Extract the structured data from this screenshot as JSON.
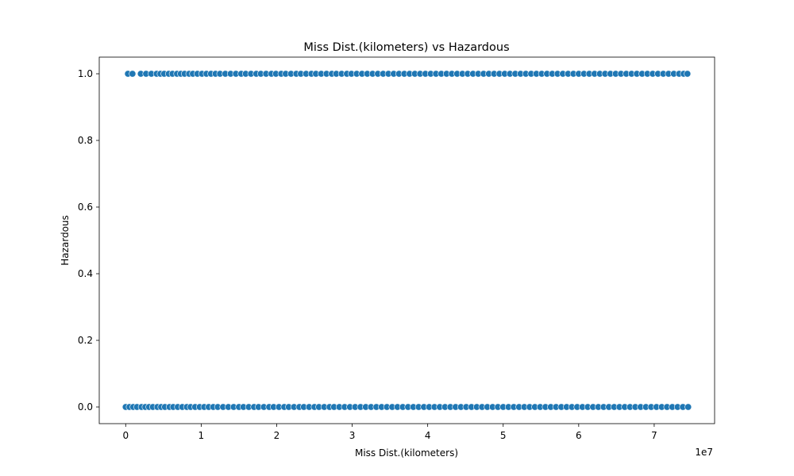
{
  "chart_data": {
    "type": "scatter",
    "title": "Miss Dist.(kilometers) vs Hazardous",
    "xlabel": "Miss Dist.(kilometers)",
    "ylabel": "Hazardous",
    "x_offset_label": "1e7",
    "x_scale": 10000000,
    "xlim": [
      -3500000,
      78000000
    ],
    "ylim": [
      -0.05,
      1.05
    ],
    "x_ticks": [
      {
        "value": 0,
        "label": "0"
      },
      {
        "value": 10000000,
        "label": "1"
      },
      {
        "value": 20000000,
        "label": "2"
      },
      {
        "value": 30000000,
        "label": "3"
      },
      {
        "value": 40000000,
        "label": "4"
      },
      {
        "value": 50000000,
        "label": "5"
      },
      {
        "value": 60000000,
        "label": "6"
      },
      {
        "value": 70000000,
        "label": "7"
      }
    ],
    "y_ticks": [
      {
        "value": 0.0,
        "label": "0.0"
      },
      {
        "value": 0.2,
        "label": "0.2"
      },
      {
        "value": 0.4,
        "label": "0.4"
      },
      {
        "value": 0.6,
        "label": "0.6"
      },
      {
        "value": 0.8,
        "label": "0.8"
      },
      {
        "value": 1.0,
        "label": "1.0"
      }
    ],
    "grid": false,
    "marker_color": "#1f77b4",
    "marker_edge_color": "#ffffff",
    "series": [
      {
        "y": 1,
        "x": [
          300000,
          900000,
          2000000,
          2700000,
          3400000,
          4100000,
          4600000,
          5100000,
          5700000,
          6200000,
          6800000,
          7300000,
          7800000,
          8400000,
          8900000,
          9500000,
          10100000,
          10700000,
          11300000,
          11900000,
          12500000,
          13200000,
          13900000,
          14600000,
          15300000,
          15900000,
          16600000,
          17300000,
          17900000,
          18600000,
          19300000,
          19900000,
          20600000,
          21200000,
          21900000,
          22600000,
          23200000,
          23900000,
          24600000,
          25200000,
          25900000,
          26600000,
          27300000,
          27900000,
          28600000,
          29300000,
          29900000,
          30600000,
          31300000,
          32000000,
          32700000,
          33400000,
          34100000,
          34800000,
          35500000,
          36200000,
          36900000,
          37600000,
          38300000,
          39000000,
          39700000,
          40400000,
          41100000,
          41800000,
          42500000,
          43200000,
          43900000,
          44600000,
          45300000,
          46000000,
          46700000,
          47400000,
          48100000,
          48800000,
          49500000,
          50200000,
          50900000,
          51600000,
          52300000,
          53000000,
          53700000,
          54400000,
          55100000,
          55800000,
          56500000,
          57200000,
          57900000,
          58600000,
          59300000,
          60000000,
          60700000,
          61400000,
          62100000,
          62800000,
          63500000,
          64200000,
          64900000,
          65600000,
          66300000,
          67000000,
          67700000,
          68400000,
          69100000,
          69800000,
          70500000,
          71200000,
          71900000,
          72600000,
          73300000,
          73900000,
          74400000
        ]
      },
      {
        "y": 0,
        "x": [
          0,
          500000,
          1000000,
          1500000,
          2100000,
          2600000,
          3100000,
          3600000,
          4200000,
          4700000,
          5200000,
          5800000,
          6300000,
          6900000,
          7500000,
          8100000,
          8600000,
          9200000,
          9800000,
          10400000,
          11000000,
          11600000,
          12200000,
          12900000,
          13600000,
          14300000,
          15000000,
          15600000,
          16300000,
          17000000,
          17600000,
          18300000,
          19000000,
          19600000,
          20300000,
          21000000,
          21600000,
          22300000,
          23000000,
          23600000,
          24300000,
          25000000,
          25600000,
          26300000,
          27000000,
          27600000,
          28300000,
          29000000,
          29700000,
          30400000,
          31100000,
          31800000,
          32500000,
          33200000,
          33900000,
          34600000,
          35300000,
          36000000,
          36700000,
          37400000,
          38100000,
          38800000,
          39500000,
          40200000,
          40900000,
          41600000,
          42300000,
          43000000,
          43700000,
          44400000,
          45100000,
          45800000,
          46500000,
          47200000,
          47900000,
          48600000,
          49300000,
          50000000,
          50700000,
          51400000,
          52100000,
          52800000,
          53500000,
          54200000,
          54900000,
          55600000,
          56300000,
          57000000,
          57700000,
          58400000,
          59100000,
          59800000,
          60500000,
          61200000,
          61900000,
          62600000,
          63300000,
          64000000,
          64700000,
          65400000,
          66100000,
          66800000,
          67500000,
          68200000,
          68900000,
          69600000,
          70300000,
          71000000,
          71700000,
          72400000,
          73100000,
          73800000,
          74500000
        ]
      }
    ]
  }
}
